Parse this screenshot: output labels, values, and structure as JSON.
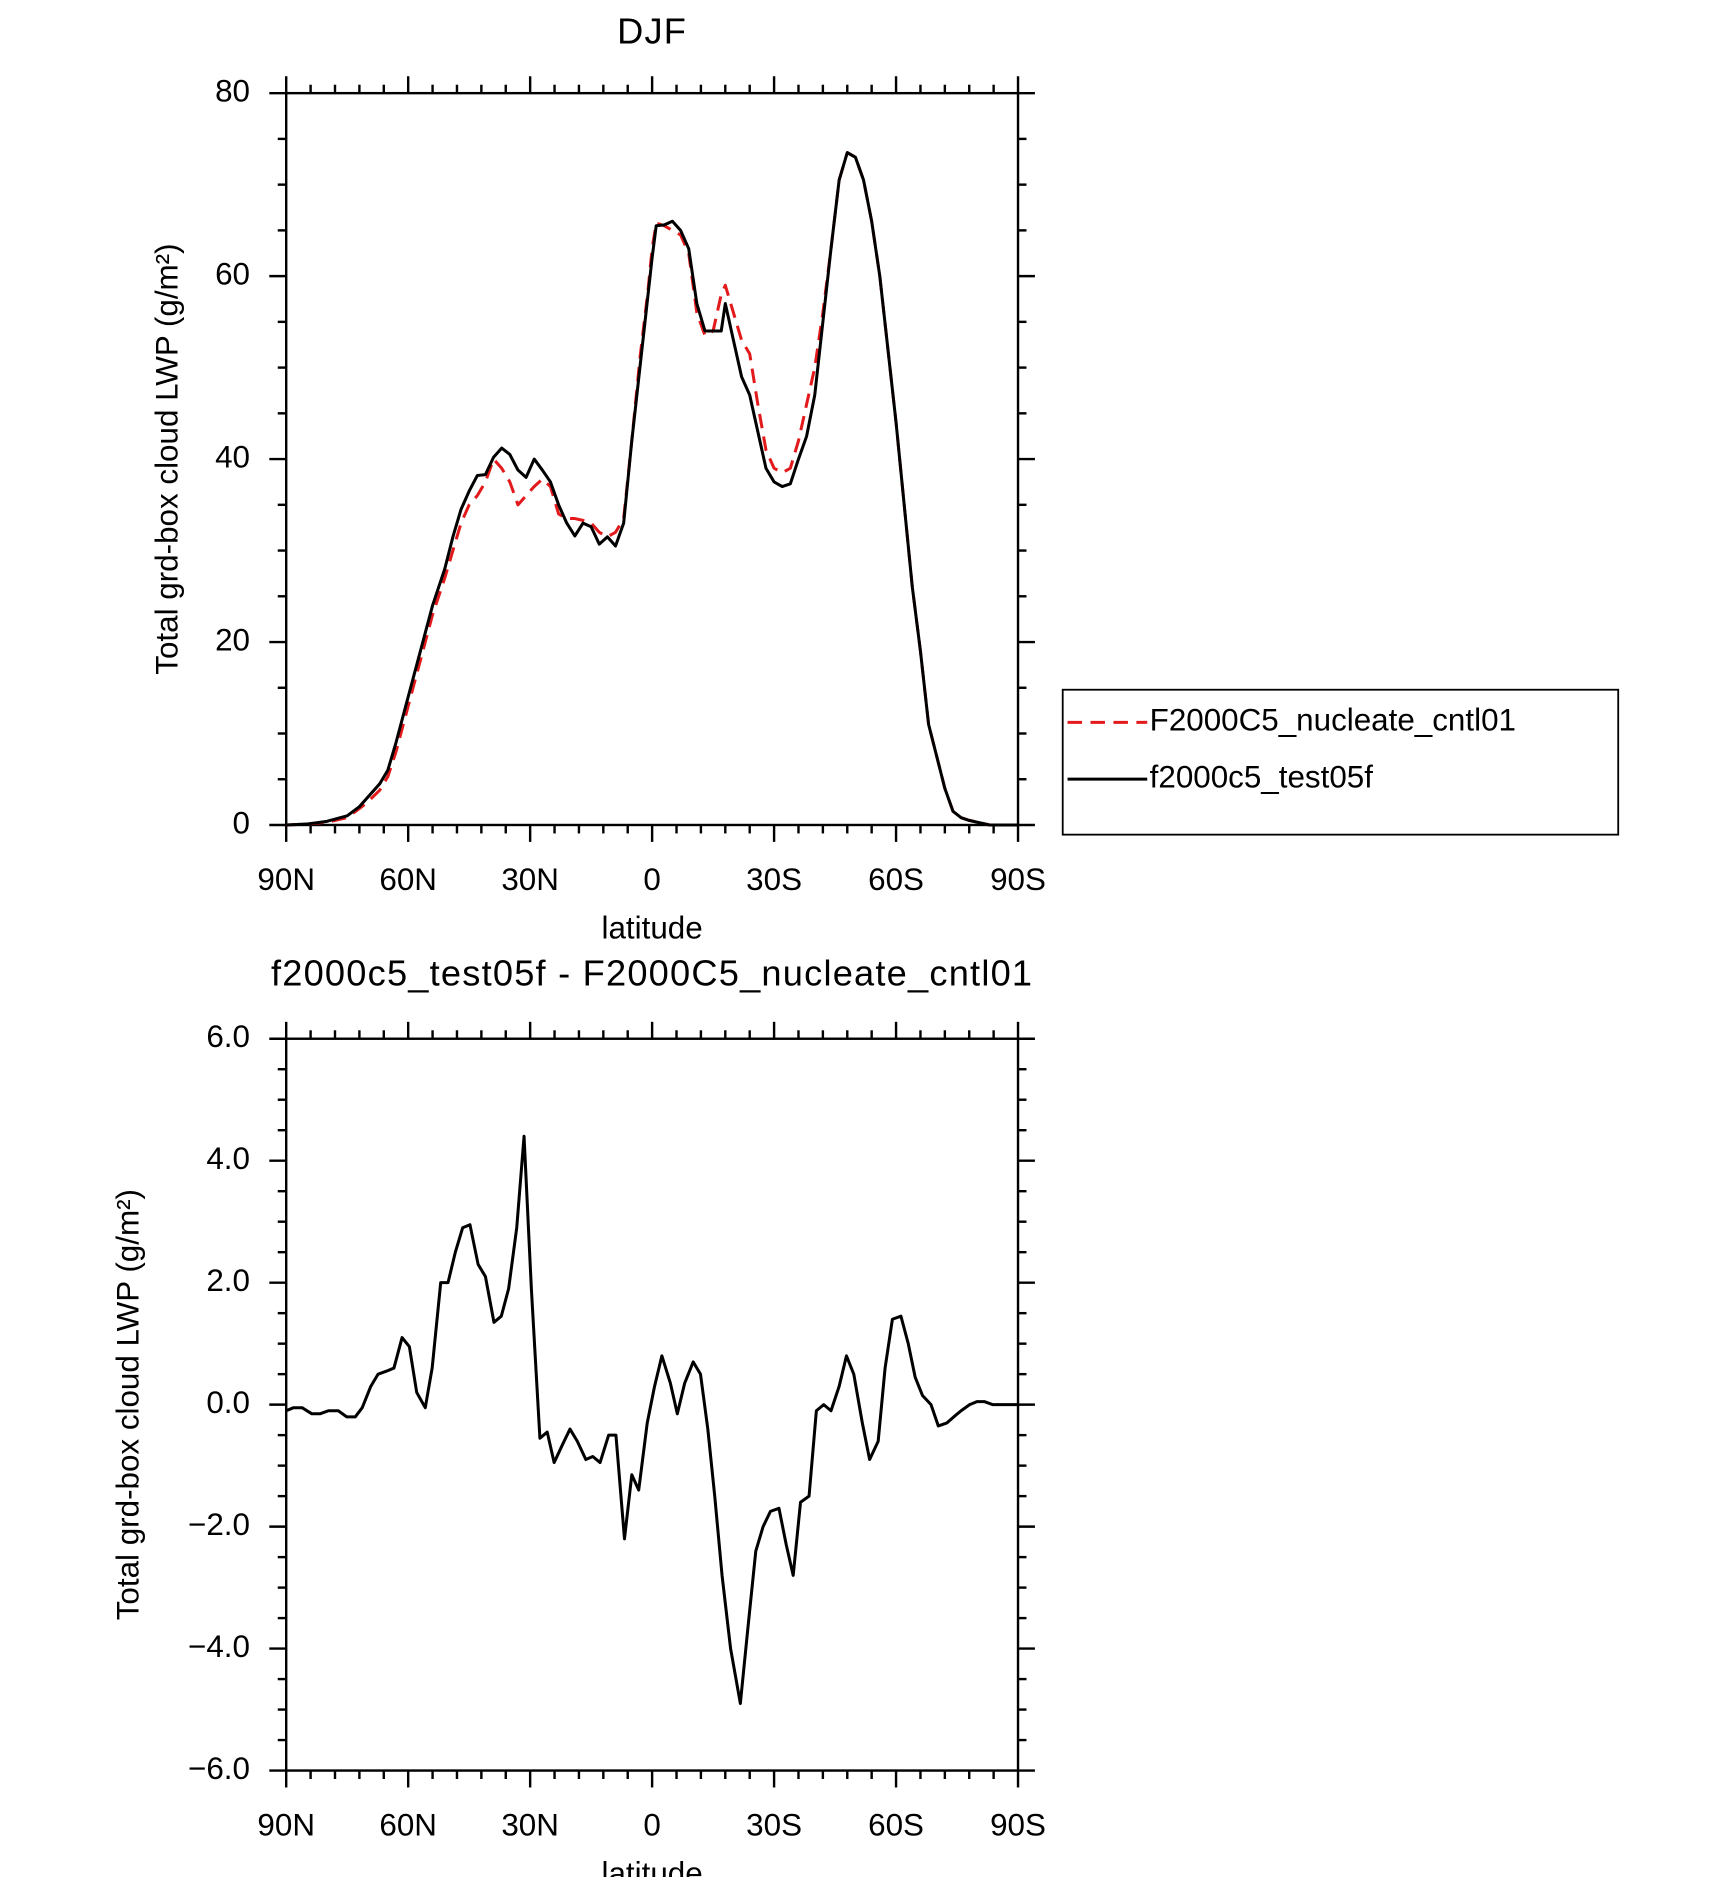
{
  "chart_data": [
    {
      "type": "line",
      "title": "DJF",
      "xlabel": "latitude",
      "ylabel": "Total grd-box cloud LWP (g/m²)",
      "x": [
        90,
        85,
        80,
        75,
        72,
        70,
        67,
        65,
        63,
        60,
        57,
        54,
        51,
        49,
        47,
        45,
        43,
        41,
        39,
        37,
        35,
        33,
        31,
        29,
        27,
        25,
        23,
        21,
        19,
        17,
        15,
        13,
        11,
        9,
        7,
        5,
        3,
        1,
        0,
        -1,
        -3,
        -5,
        -7,
        -9,
        -11,
        -13,
        -15,
        -17,
        -18,
        -20,
        -22,
        -24,
        -26,
        -28,
        -30,
        -32,
        -34,
        -36,
        -38,
        -40,
        -42,
        -44,
        -46,
        -48,
        -50,
        -52,
        -54,
        -56,
        -58,
        -60,
        -62,
        -64,
        -66,
        -68,
        -70,
        -72,
        -74,
        -76,
        -78,
        -80,
        -83,
        -86,
        -90
      ],
      "series": [
        {
          "name": "F2000C5_nucleate_cntl01",
          "color": "#e31a1c",
          "dashed": true,
          "values": [
            0,
            0.1,
            0.3,
            0.8,
            1.8,
            2.5,
            3.8,
            5.3,
            8,
            13,
            18,
            23,
            27,
            30,
            33,
            35,
            36,
            37.5,
            40,
            39,
            37.5,
            35,
            36,
            37,
            37.8,
            37,
            34,
            33.5,
            33.5,
            33.3,
            33,
            32,
            31.5,
            32,
            33.5,
            42,
            51,
            58.5,
            63,
            65.8,
            65.5,
            65,
            64.5,
            62.5,
            56,
            53.5,
            54,
            58,
            59,
            56,
            53,
            51.5,
            46,
            41,
            39,
            38.5,
            39,
            42,
            46,
            50,
            56,
            63,
            70.5,
            73.5,
            73,
            70.5,
            66,
            60,
            52,
            44,
            35,
            26,
            19,
            11,
            7.5,
            4,
            1.5,
            0.8,
            0.5,
            0.3,
            0,
            0,
            0
          ]
        },
        {
          "name": "f2000c5_test05f",
          "color": "#000000",
          "dashed": false,
          "values": [
            0,
            0.1,
            0.4,
            1,
            2,
            3,
            4.5,
            6,
            9,
            14,
            19,
            24,
            28,
            31.5,
            34.5,
            36.5,
            38.2,
            38.3,
            40.2,
            41.2,
            40.5,
            38.8,
            38,
            40,
            38.8,
            37.5,
            35,
            33,
            31.6,
            33,
            32.6,
            30.7,
            31.5,
            30.5,
            33,
            42,
            50,
            58,
            62,
            65.5,
            65.6,
            66,
            65,
            63,
            57,
            54,
            54,
            54,
            57,
            53,
            49,
            47,
            43,
            39,
            37.5,
            37,
            37.3,
            40,
            42.5,
            47,
            55,
            63,
            70.5,
            73.5,
            73,
            70.5,
            66,
            60,
            52,
            44,
            35,
            26,
            19,
            11,
            7.5,
            4,
            1.5,
            0.8,
            0.5,
            0.3,
            0,
            0,
            0
          ]
        }
      ],
      "xlim": [
        90,
        -90
      ],
      "xticks": [
        {
          "value": 90,
          "label": "90N"
        },
        {
          "value": 60,
          "label": "60N"
        },
        {
          "value": 30,
          "label": "30N"
        },
        0,
        {
          "value": -30,
          "label": "30S"
        },
        {
          "value": -60,
          "label": "60S"
        },
        {
          "value": -90,
          "label": "90S"
        }
      ],
      "ylim": [
        0,
        80
      ],
      "yticks": [
        0,
        20,
        40,
        60,
        80
      ],
      "legend": "right"
    },
    {
      "type": "line",
      "title": "f2000c5_test05f - F2000C5_nucleate_cntl01",
      "xlabel": "latitude",
      "ylabel": "Total grd-box cloud LWP (g/m²)",
      "x": [
        90,
        88.2,
        86.1,
        83.7,
        81.7,
        79.6,
        77.2,
        75.1,
        73,
        71.3,
        69.2,
        67.4,
        65.3,
        63.5,
        61.5,
        59.7,
        57.9,
        55.8,
        54.1,
        52,
        50.2,
        48.4,
        46.6,
        44.8,
        42.8,
        41,
        38.9,
        37.1,
        35.3,
        33.3,
        31.5,
        29.7,
        27.6,
        25.8,
        24.1,
        22,
        20.2,
        18.4,
        16.3,
        14.6,
        12.8,
        10.7,
        8.9,
        6.8,
        5,
        3.3,
        1.2,
        -0.6,
        -2.4,
        -4.5,
        -6.2,
        -8,
        -10.1,
        -11.9,
        -13.7,
        -15.4,
        -17.2,
        -19.3,
        -21.7,
        -23.5,
        -25.5,
        -27.3,
        -29.1,
        -31.2,
        -33,
        -34.7,
        -36.5,
        -38.6,
        -40.4,
        -42.2,
        -44,
        -46,
        -47.8,
        -49.6,
        -51.7,
        -53.5,
        -55.6,
        -57.3,
        -59.1,
        -61.2,
        -63,
        -64.7,
        -66.5,
        -68.6,
        -70.4,
        -72.5,
        -74.2,
        -76,
        -78.1,
        -79.9,
        -81.7,
        -83.8,
        -85.6,
        -87.7,
        -90
      ],
      "series": [
        {
          "name": "f2000c5_test05f - F2000C5_nucleate_cntl01",
          "color": "#000000",
          "dashed": false,
          "values": [
            -0.1,
            -0.05,
            -0.05,
            -0.15,
            -0.15,
            -0.1,
            -0.1,
            -0.2,
            -0.2,
            -0.05,
            0.3,
            0.5,
            0.55,
            0.6,
            1.1,
            0.95,
            0.2,
            -0.05,
            0.6,
            2,
            2,
            2.5,
            2.9,
            2.95,
            2.3,
            2.1,
            1.35,
            1.45,
            1.9,
            2.9,
            4.4,
            1.9,
            -0.55,
            -0.45,
            -0.95,
            -0.65,
            -0.4,
            -0.6,
            -0.9,
            -0.85,
            -0.95,
            -0.5,
            -0.5,
            -2.2,
            -1.15,
            -1.4,
            -0.3,
            0.3,
            0.8,
            0.35,
            -0.15,
            0.35,
            0.7,
            0.5,
            -0.4,
            -1.5,
            -2.8,
            -4,
            -4.9,
            -3.7,
            -2.4,
            -2,
            -1.75,
            -1.7,
            -2.3,
            -2.8,
            -1.6,
            -1.5,
            -0.1,
            0,
            -0.1,
            0.3,
            0.8,
            0.5,
            -0.3,
            -0.9,
            -0.6,
            0.6,
            1.4,
            1.45,
            1,
            0.45,
            0.15,
            0,
            -0.35,
            -0.3,
            -0.2,
            -0.1,
            0,
            0.05,
            0.05,
            0,
            0,
            0,
            0
          ]
        }
      ],
      "xlim": [
        90,
        -90
      ],
      "xticks": [
        {
          "value": 90,
          "label": "90N"
        },
        {
          "value": 60,
          "label": "60N"
        },
        {
          "value": 30,
          "label": "30N"
        },
        0,
        {
          "value": -30,
          "label": "30S"
        },
        {
          "value": -60,
          "label": "60S"
        },
        {
          "value": -90,
          "label": "90S"
        }
      ],
      "ylim": [
        -6,
        6
      ],
      "yticks": [
        {
          "value": -6,
          "label": "−6.0"
        },
        {
          "value": -4,
          "label": "−4.0"
        },
        {
          "value": -2,
          "label": "−2.0"
        },
        {
          "value": 0,
          "label": "0.0"
        },
        {
          "value": 2,
          "label": "2.0"
        },
        {
          "value": 4,
          "label": "4.0"
        },
        {
          "value": 6,
          "label": "6.0"
        }
      ]
    }
  ]
}
